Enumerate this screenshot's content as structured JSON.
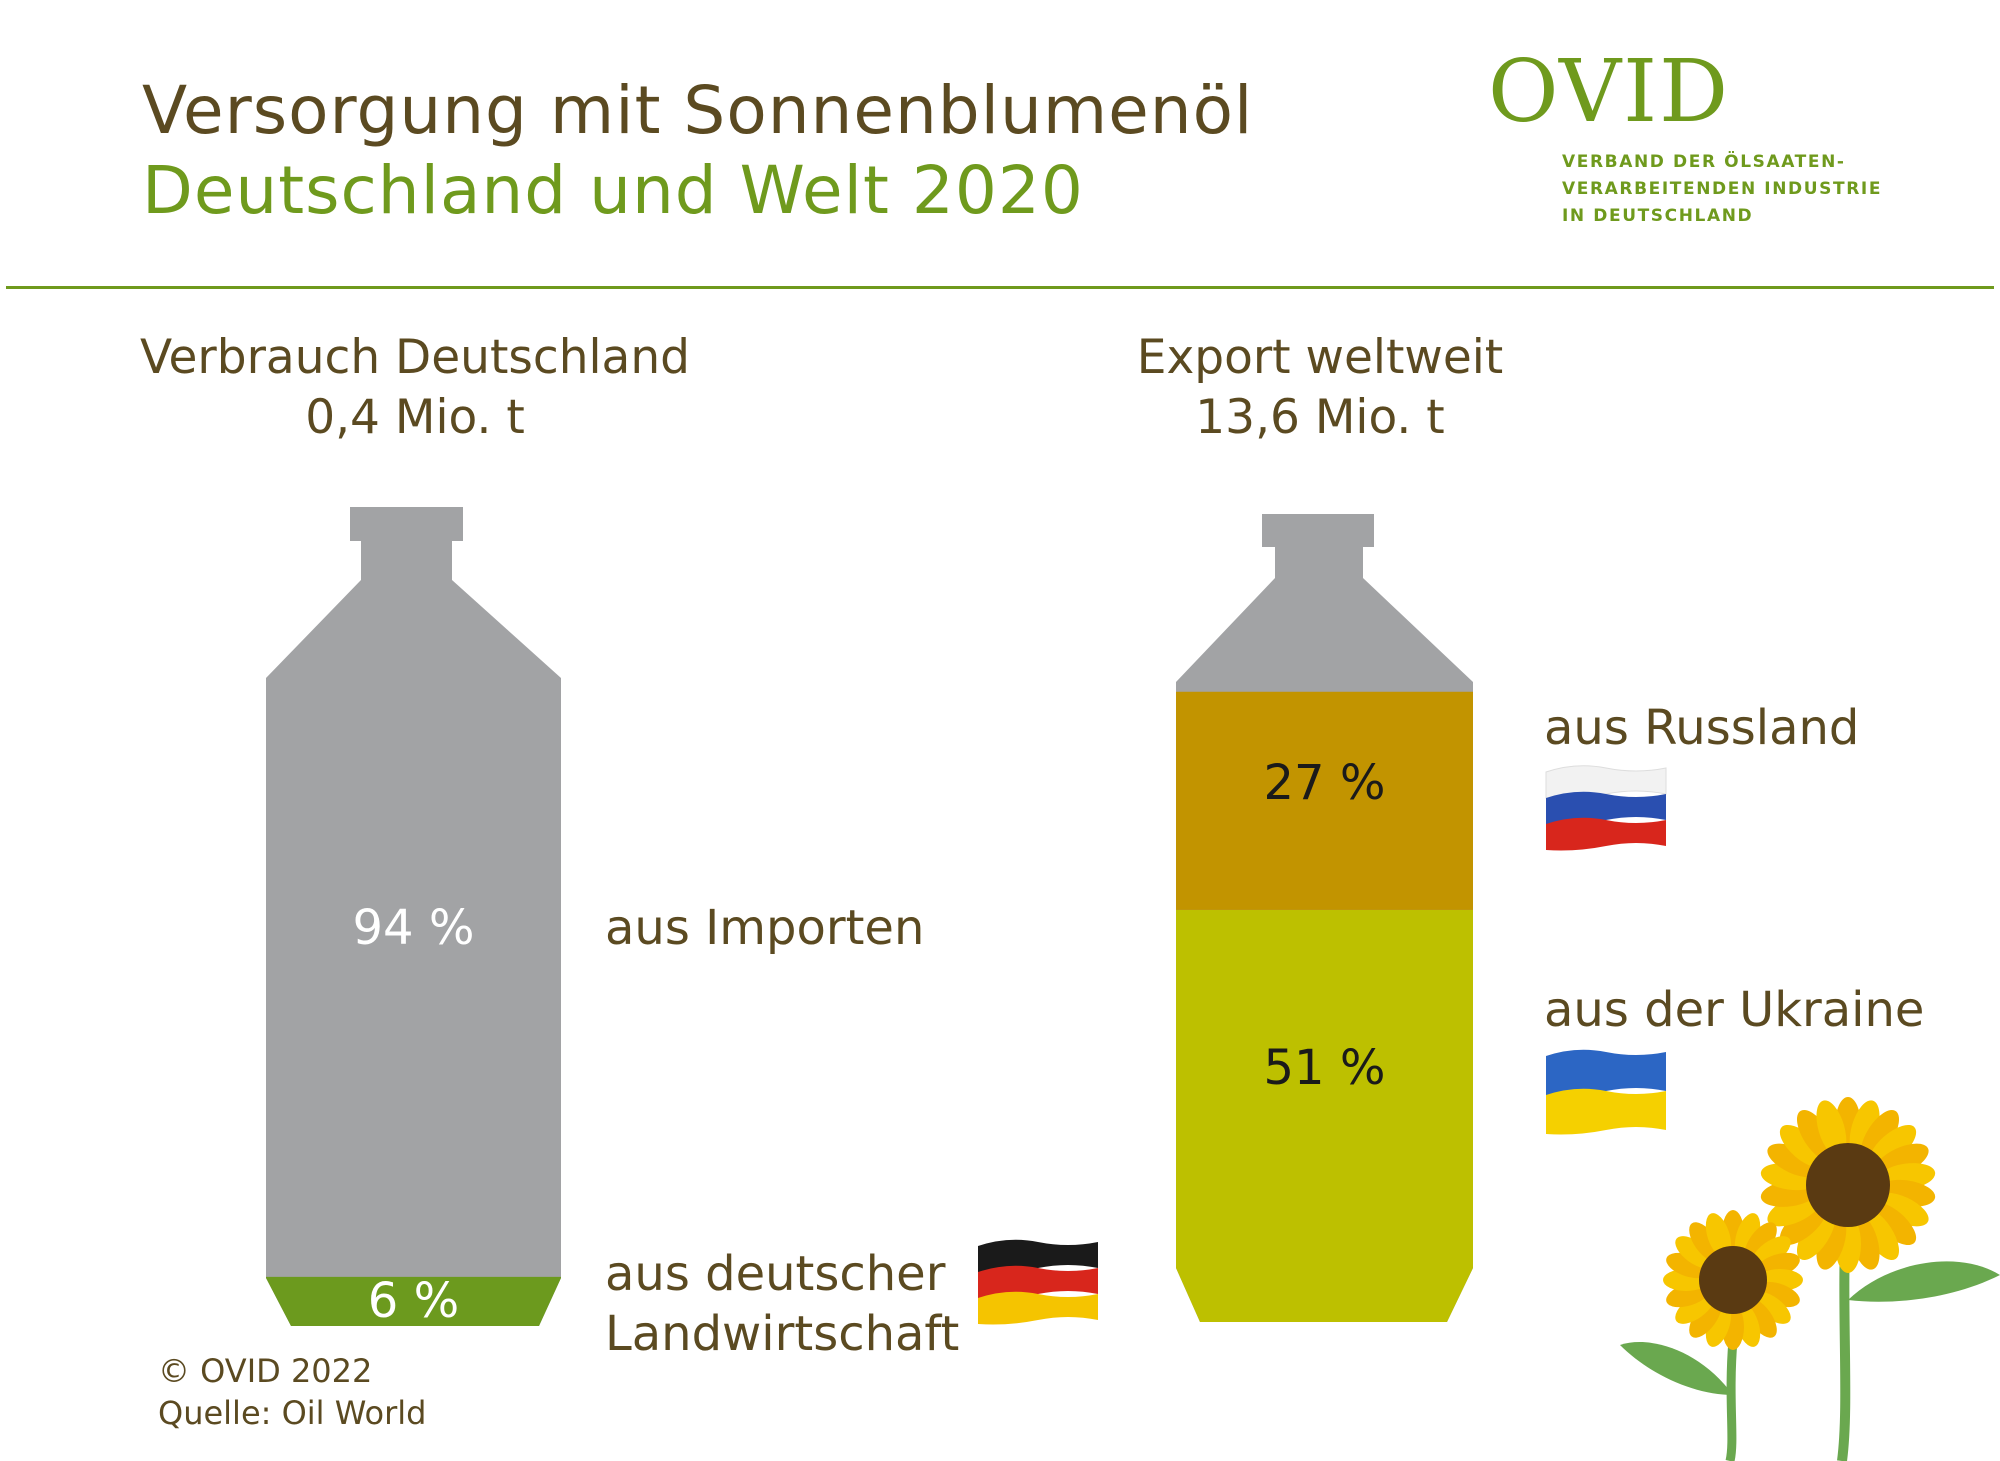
{
  "header": {
    "title_line1": "Versorgung mit Sonnenblumenöl",
    "title_line2": "Deutschland und Welt 2020"
  },
  "logo": {
    "name": "OVID",
    "association_line1": "VERBAND DER ÖLSAATEN-",
    "association_line2": "VERARBEITENDEN INDUSTRIE",
    "association_line3": "IN DEUTSCHLAND"
  },
  "footer": {
    "copyright": "© OVID 2022",
    "source": "Quelle: Oil World"
  },
  "colors": {
    "brown": "#5b4a21",
    "green": "#6f9a1d",
    "bottle_gray": "#a2a3a5",
    "russia": "#c29400",
    "ukraine": "#bdc000",
    "germany_green": "#6c9a1e"
  },
  "icons": [
    "germany-flag-icon",
    "russia-flag-icon",
    "ukraine-flag-icon",
    "sunflower-icon"
  ],
  "chart_data": [
    {
      "type": "bar",
      "style": "stacked bottle",
      "title": "Verbrauch Deutschland",
      "subtitle": "0,4 Mio. t",
      "unit": "%",
      "segments": [
        {
          "label": "aus Importen",
          "value": 94,
          "value_label": "94 %"
        },
        {
          "label_line1": "aus deutscher",
          "label_line2": "Landwirtschaft",
          "value": 6,
          "value_label": "6 %"
        }
      ]
    },
    {
      "type": "bar",
      "style": "stacked bottle",
      "title": "Export weltweit",
      "subtitle": "13,6 Mio. t",
      "unit": "%",
      "segments": [
        {
          "label": "aus Russland",
          "value": 27,
          "value_label": "27 %"
        },
        {
          "label": "aus der Ukraine",
          "value": 51,
          "value_label": "51 %"
        }
      ]
    }
  ]
}
